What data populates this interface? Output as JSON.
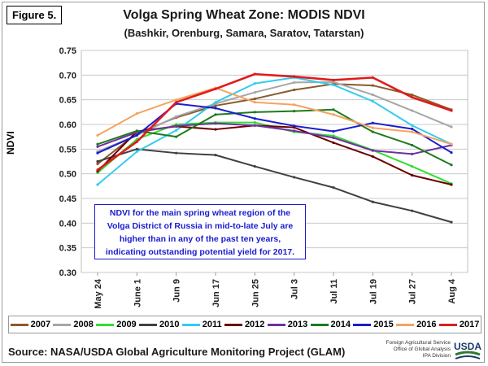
{
  "figure_label": "Figure 5.",
  "chart_data": {
    "type": "line",
    "title": "Volga Spring Wheat Zone:  MODIS NDVI",
    "subtitle": "(Bashkir, Orenburg, Samara, Saratov, Tatarstan)",
    "ylabel": "NDVI",
    "xlabel": "",
    "ylim": [
      0.3,
      0.75
    ],
    "yticks": [
      "0.30",
      "0.35",
      "0.40",
      "0.45",
      "0.50",
      "0.55",
      "0.60",
      "0.65",
      "0.70",
      "0.75"
    ],
    "grid": true,
    "legend_position": "bottom",
    "categories": [
      "May 24",
      "June 1",
      "Jun 9",
      "Jun 17",
      "Jun 25",
      "Jul 3",
      "Jul 11",
      "Jul 19",
      "Jul 27",
      "Aug 4"
    ],
    "series": [
      {
        "name": "2007",
        "color": "#8b5a2b",
        "values": [
          0.52,
          0.582,
          0.614,
          0.638,
          0.652,
          0.67,
          0.682,
          0.679,
          0.66,
          0.63
        ]
      },
      {
        "name": "2008",
        "color": "#a6a6a6",
        "values": [
          0.545,
          0.578,
          0.616,
          0.642,
          0.665,
          0.685,
          0.686,
          0.66,
          0.628,
          0.595
        ]
      },
      {
        "name": "2009",
        "color": "#33dd33",
        "values": [
          0.502,
          0.57,
          0.6,
          0.604,
          0.604,
          0.585,
          0.577,
          0.548,
          0.515,
          0.48
        ]
      },
      {
        "name": "2010",
        "color": "#404040",
        "values": [
          0.525,
          0.55,
          0.542,
          0.538,
          0.515,
          0.493,
          0.472,
          0.443,
          0.425,
          0.402
        ]
      },
      {
        "name": "2011",
        "color": "#33ccee",
        "values": [
          0.478,
          0.545,
          0.588,
          0.645,
          0.683,
          0.695,
          0.68,
          0.647,
          0.598,
          0.56
        ]
      },
      {
        "name": "2012",
        "color": "#6b0000",
        "values": [
          0.505,
          0.586,
          0.596,
          0.59,
          0.598,
          0.594,
          0.563,
          0.535,
          0.497,
          0.478
        ]
      },
      {
        "name": "2013",
        "color": "#7030a0",
        "values": [
          0.555,
          0.584,
          0.597,
          0.602,
          0.598,
          0.587,
          0.573,
          0.547,
          0.54,
          0.558
        ]
      },
      {
        "name": "2014",
        "color": "#1e7b1e",
        "values": [
          0.56,
          0.587,
          0.575,
          0.62,
          0.625,
          0.627,
          0.63,
          0.585,
          0.558,
          0.518
        ]
      },
      {
        "name": "2015",
        "color": "#1b1bd0",
        "values": [
          0.542,
          0.578,
          0.642,
          0.633,
          0.612,
          0.597,
          0.586,
          0.603,
          0.591,
          0.543
        ]
      },
      {
        "name": "2016",
        "color": "#f4a460",
        "values": [
          0.578,
          0.622,
          0.65,
          0.674,
          0.645,
          0.64,
          0.62,
          0.593,
          0.585,
          0.56
        ]
      },
      {
        "name": "2017",
        "color": "#e01b1b",
        "values": [
          0.508,
          0.565,
          0.645,
          0.672,
          0.702,
          0.697,
          0.69,
          0.695,
          0.655,
          0.628
        ]
      }
    ],
    "annotation": "NDVI for the main spring wheat region of the Volga District of Russia in mid-to-late July are higher than in any of the past ten years, indicating outstanding potential yield for 2017."
  },
  "source": "Source: NASA/USDA Global Agriculture Monitoring Project (GLAM)",
  "agency": {
    "line1": "Foreign Agricultural Service",
    "line2": "Office of Global Analysis",
    "line3": "IPA Division",
    "logo": "USDA"
  }
}
